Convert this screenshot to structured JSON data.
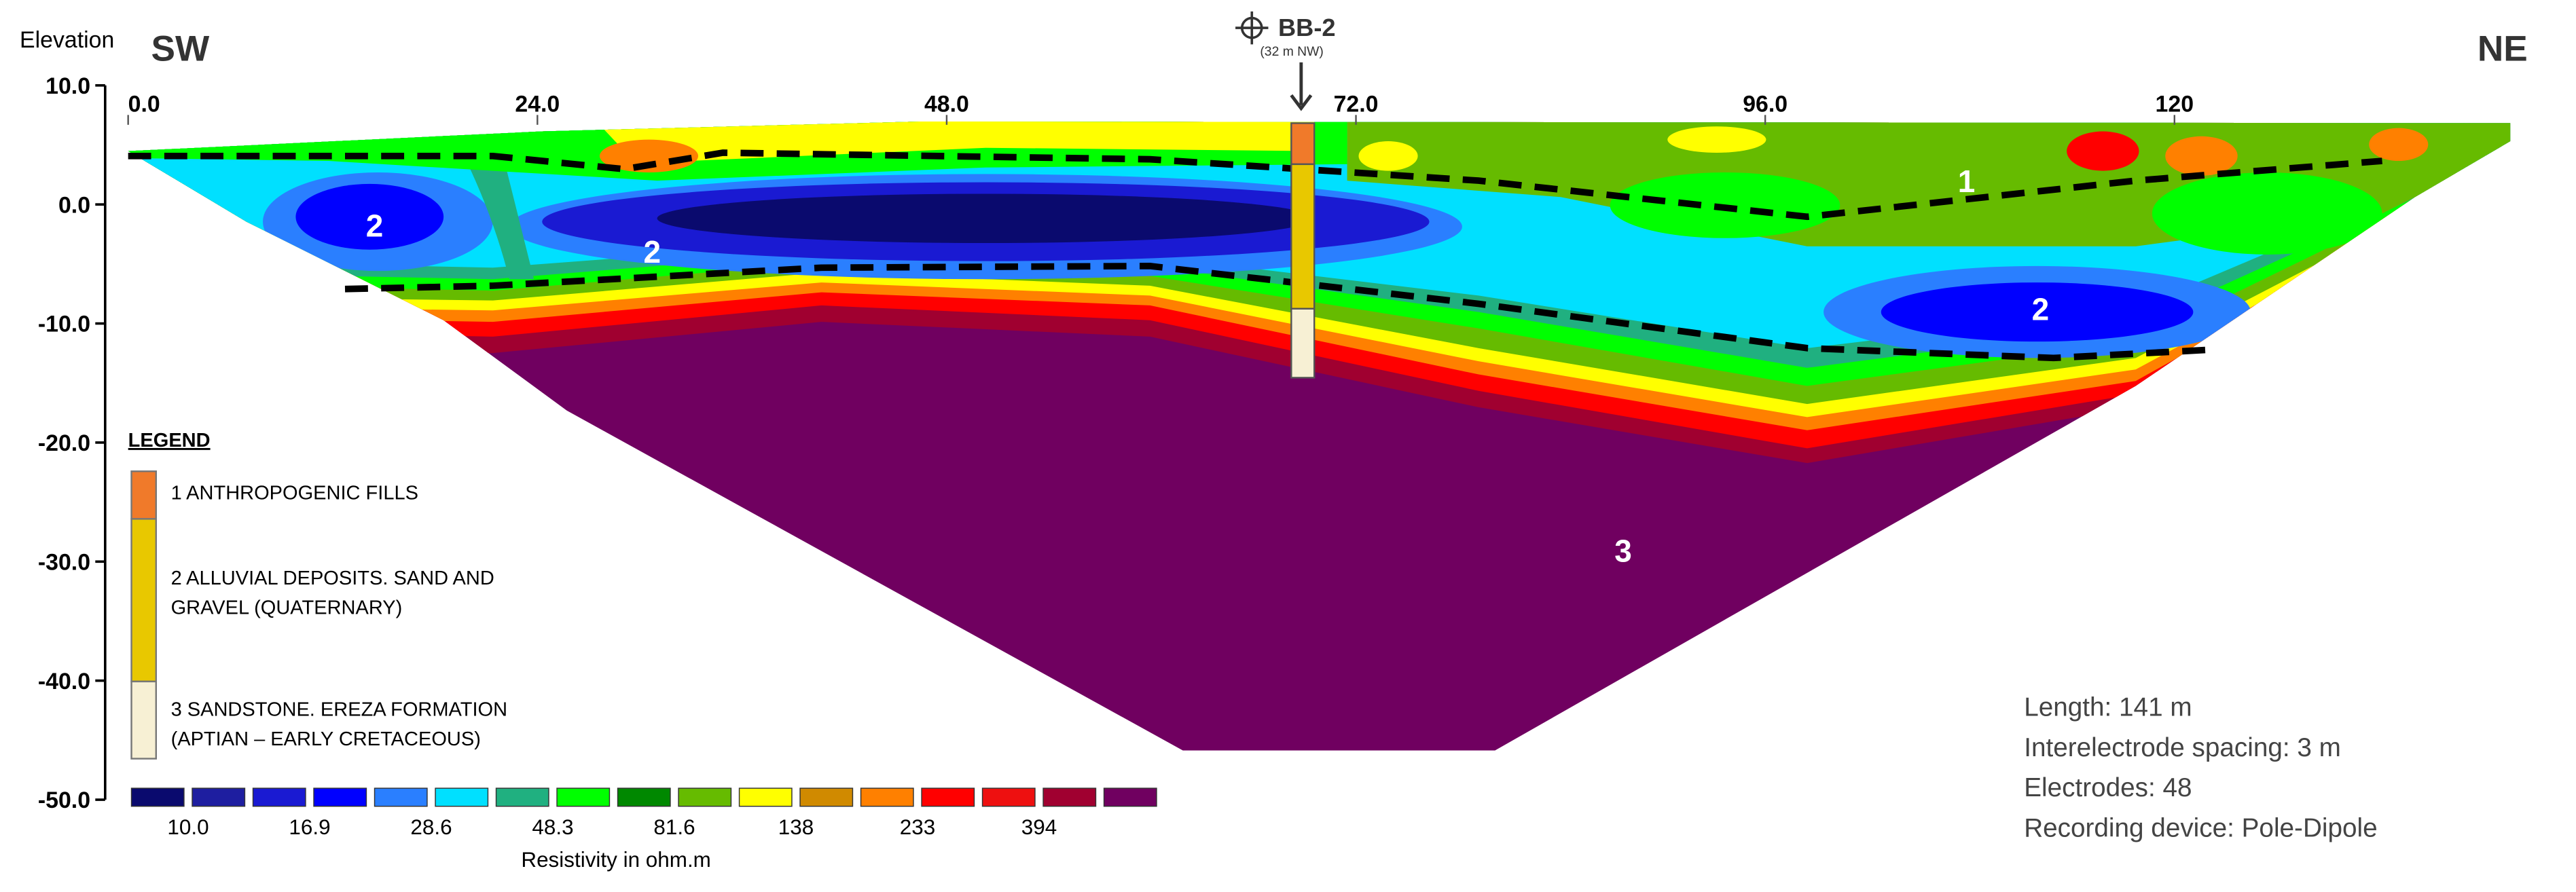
{
  "header": {
    "elevation_label": "Elevation",
    "left_direction": "SW",
    "right_direction": "NE"
  },
  "borehole": {
    "label": "BB-2",
    "note": "(32 m NW)"
  },
  "axes": {
    "xlim": [
      0,
      141
    ],
    "ylim": [
      -50,
      10
    ],
    "xticks": [
      {
        "value": 0,
        "label": "0.0"
      },
      {
        "value": 24,
        "label": "24.0"
      },
      {
        "value": 48,
        "label": "48.0"
      },
      {
        "value": 72,
        "label": "72.0"
      },
      {
        "value": 96,
        "label": "96.0"
      },
      120
    ],
    "yticks": [
      {
        "value": 10,
        "label": "10.0"
      },
      {
        "value": 0,
        "label": "0.0"
      },
      {
        "value": -10,
        "label": "-10.0"
      },
      {
        "value": -20,
        "label": "-20.0"
      },
      {
        "value": -30,
        "label": "-30.0"
      },
      {
        "value": -40,
        "label": "-40.0"
      },
      {
        "value": -50,
        "label": "-50.0"
      }
    ]
  },
  "zones": [
    "2",
    "2",
    "1",
    "2",
    "3"
  ],
  "legend": {
    "title": "LEGEND",
    "items": [
      {
        "color": "#f07a2a",
        "lines": [
          "1 ANTHROPOGENIC FILLS"
        ]
      },
      {
        "color": "#e8c800",
        "lines": [
          "2 ALLUVIAL DEPOSITS. SAND AND",
          "GRAVEL (QUATERNARY)"
        ]
      },
      {
        "color": "#f7f0d4",
        "lines": [
          "3 SANDSTONE. EREZA FORMATION",
          "(APTIAN – EARLY CRETACEOUS)"
        ]
      }
    ]
  },
  "colorbar": {
    "title": "Resistivity in ohm.m",
    "colors": [
      "#0a0a6e",
      "#1e1ea0",
      "#1a1ad2",
      "#0000ff",
      "#2a7fff",
      "#00e0ff",
      "#20b080",
      "#00ff00",
      "#008800",
      "#66bb00",
      "#ffff00",
      "#d08a00",
      "#ff8000",
      "#ff0000",
      "#ee1010",
      "#a00030",
      "#700060"
    ],
    "labels": [
      "10.0",
      "16.9",
      "28.6",
      "48.3",
      "81.6",
      "138",
      "233",
      "394"
    ]
  },
  "info": [
    "Length: 141 m",
    "Interelectrode spacing: 3 m",
    "Electrodes: 48",
    "Recording device: Pole-Dipole"
  ]
}
